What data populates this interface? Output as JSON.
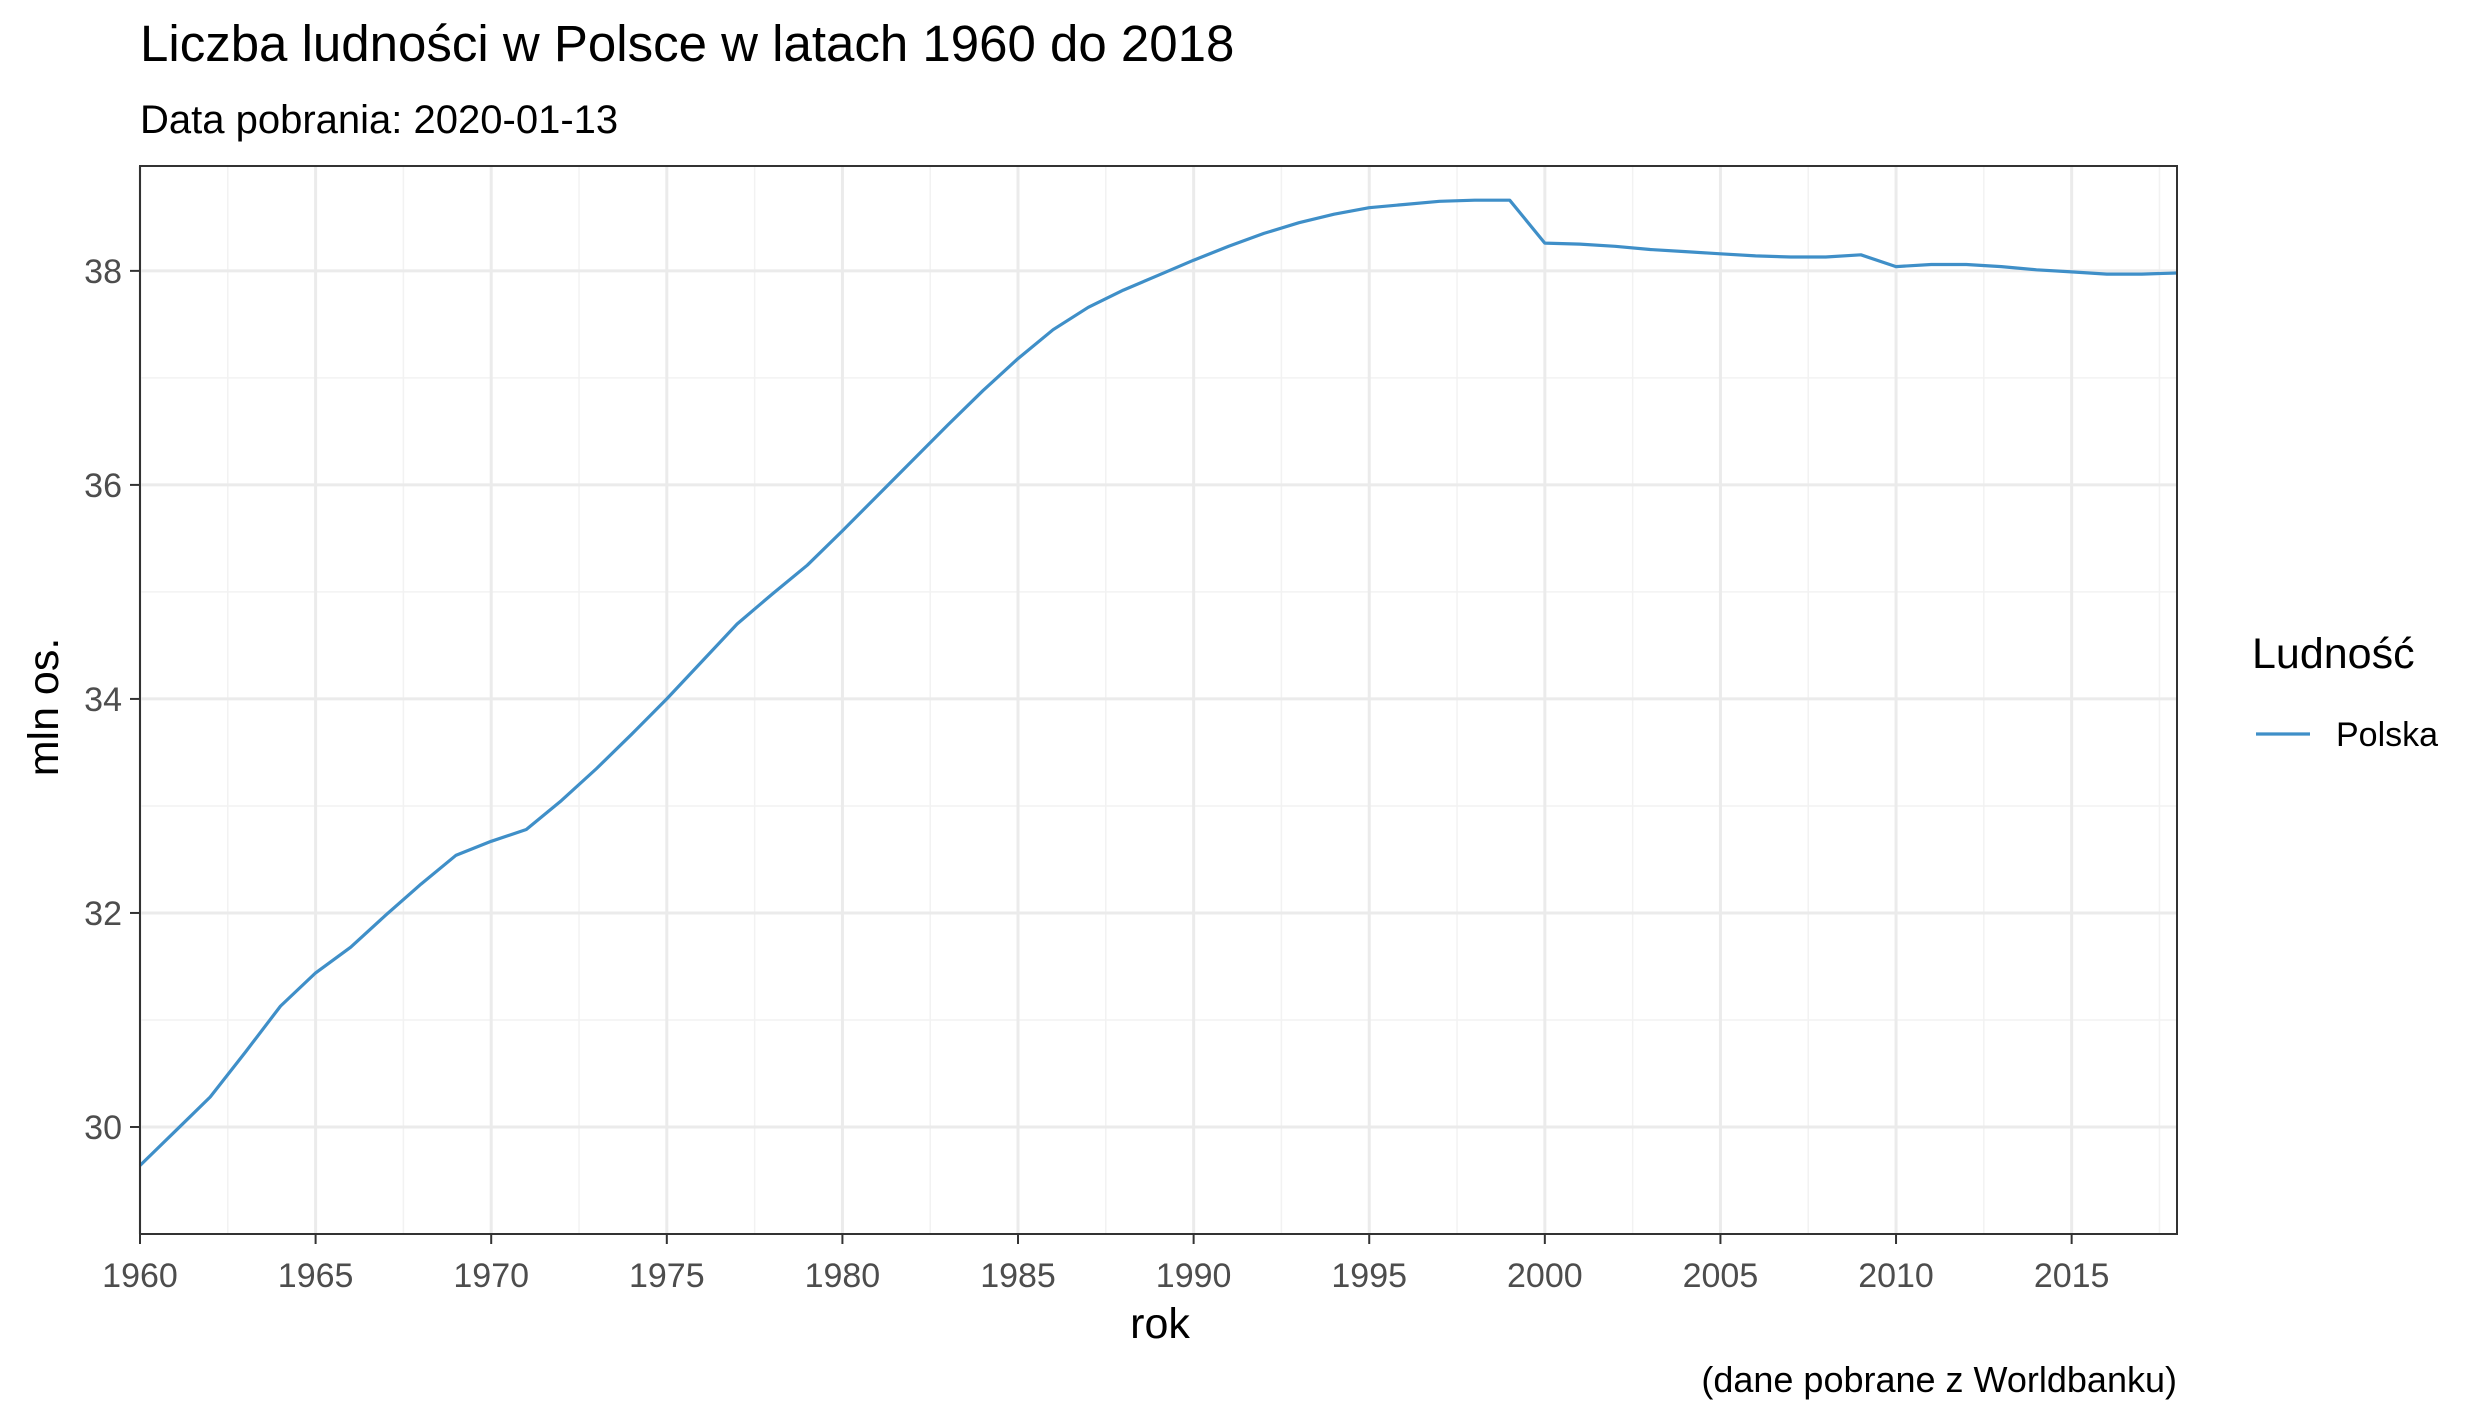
{
  "chart_data": {
    "type": "line",
    "title": "Liczba ludności w Polsce w latach 1960 do 2018",
    "subtitle": "Data pobrania: 2020-01-13",
    "caption": "(dane pobrane z Worldbanku)",
    "xlabel": "rok",
    "ylabel": "mln os.",
    "xlim": [
      1960,
      2018
    ],
    "ylim": [
      29.0,
      38.98
    ],
    "x_ticks": [
      "1960",
      "1965",
      "1970",
      "1975",
      "1980",
      "1985",
      "1990",
      "1995",
      "2000",
      "2005",
      "2010",
      "2015"
    ],
    "y_ticks": [
      "30",
      "32",
      "34",
      "36",
      "38"
    ],
    "grid": true,
    "legend": {
      "title": "Ludność",
      "position": "right"
    },
    "series": [
      {
        "name": "Polska",
        "color": "#3f8fc8",
        "x": [
          1960,
          1961,
          1962,
          1963,
          1964,
          1965,
          1966,
          1967,
          1968,
          1969,
          1970,
          1971,
          1972,
          1973,
          1974,
          1975,
          1976,
          1977,
          1978,
          1979,
          1980,
          1981,
          1982,
          1983,
          1984,
          1985,
          1986,
          1987,
          1988,
          1989,
          1990,
          1991,
          1992,
          1993,
          1994,
          1995,
          1996,
          1997,
          1998,
          1999,
          2000,
          2001,
          2002,
          2003,
          2004,
          2005,
          2006,
          2007,
          2008,
          2009,
          2010,
          2011,
          2012,
          2013,
          2014,
          2015,
          2016,
          2017,
          2018
        ],
        "values": [
          29.64,
          29.96,
          30.28,
          30.7,
          31.13,
          31.44,
          31.68,
          31.98,
          32.27,
          32.54,
          32.67,
          32.78,
          33.05,
          33.35,
          33.67,
          34.0,
          34.35,
          34.7,
          34.98,
          35.25,
          35.57,
          35.9,
          36.23,
          36.56,
          36.88,
          37.18,
          37.45,
          37.66,
          37.82,
          37.96,
          38.1,
          38.23,
          38.35,
          38.45,
          38.53,
          38.59,
          38.62,
          38.65,
          38.66,
          38.66,
          38.26,
          38.25,
          38.23,
          38.2,
          38.18,
          38.16,
          38.14,
          38.13,
          38.13,
          38.15,
          38.04,
          38.06,
          38.06,
          38.04,
          38.01,
          37.99,
          37.97,
          37.97,
          37.98
        ]
      }
    ]
  }
}
